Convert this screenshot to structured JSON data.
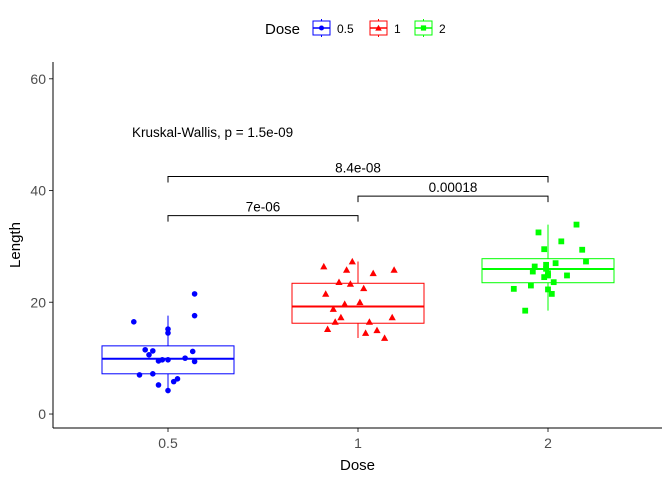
{
  "chart_data": {
    "type": "boxplot",
    "xlabel": "Dose",
    "ylabel": "Length",
    "ylim": [
      -2.5,
      63
    ],
    "yticks": [
      0,
      20,
      40,
      60
    ],
    "categories": [
      "0.5",
      "1",
      "2"
    ],
    "legend": {
      "title": "Dose",
      "position": "top",
      "entries": [
        {
          "label": "0.5",
          "color": "#0000FF",
          "shape": "circle"
        },
        {
          "label": "1",
          "color": "#FF0000",
          "shape": "triangle"
        },
        {
          "label": "2",
          "color": "#00FF00",
          "shape": "square"
        }
      ]
    },
    "series": [
      {
        "name": "0.5",
        "color": "#0000FF",
        "shape": "circle",
        "box": {
          "whisker_low": 4.2,
          "q1": 7.2,
          "median": 9.9,
          "q3": 12.2,
          "whisker_high": 17.6
        },
        "points": [
          {
            "x": -0.18,
            "y": 16.5
          },
          {
            "x": -0.12,
            "y": 11.5
          },
          {
            "x": -0.08,
            "y": 11.3
          },
          {
            "x": -0.15,
            "y": 7.0
          },
          {
            "x": -0.1,
            "y": 10.6
          },
          {
            "x": -0.05,
            "y": 9.5
          },
          {
            "x": -0.08,
            "y": 7.2
          },
          {
            "x": -0.03,
            "y": 9.7
          },
          {
            "x": 0.0,
            "y": 15.2
          },
          {
            "x": 0.0,
            "y": 14.5
          },
          {
            "x": 0.0,
            "y": 9.7
          },
          {
            "x": 0.05,
            "y": 6.3
          },
          {
            "x": 0.03,
            "y": 5.8
          },
          {
            "x": -0.05,
            "y": 5.2
          },
          {
            "x": 0.0,
            "y": 4.2
          },
          {
            "x": 0.09,
            "y": 10.0
          },
          {
            "x": 0.14,
            "y": 9.4
          },
          {
            "x": 0.13,
            "y": 11.2
          },
          {
            "x": 0.14,
            "y": 17.6
          },
          {
            "x": 0.14,
            "y": 21.5
          }
        ]
      },
      {
        "name": "1",
        "color": "#FF0000",
        "shape": "triangle",
        "box": {
          "whisker_low": 13.6,
          "q1": 16.25,
          "median": 19.25,
          "q3": 23.4,
          "whisker_high": 27.3
        },
        "points": [
          {
            "x": -0.18,
            "y": 26.4
          },
          {
            "x": -0.17,
            "y": 21.5
          },
          {
            "x": -0.13,
            "y": 18.8
          },
          {
            "x": -0.16,
            "y": 15.2
          },
          {
            "x": -0.12,
            "y": 16.5
          },
          {
            "x": -0.09,
            "y": 17.3
          },
          {
            "x": -0.1,
            "y": 23.6
          },
          {
            "x": -0.07,
            "y": 19.7
          },
          {
            "x": -0.06,
            "y": 25.8
          },
          {
            "x": -0.04,
            "y": 23.3
          },
          {
            "x": -0.03,
            "y": 27.3
          },
          {
            "x": 0.01,
            "y": 20.0
          },
          {
            "x": 0.03,
            "y": 22.5
          },
          {
            "x": 0.04,
            "y": 14.5
          },
          {
            "x": 0.06,
            "y": 16.5
          },
          {
            "x": 0.08,
            "y": 25.2
          },
          {
            "x": 0.1,
            "y": 15.0
          },
          {
            "x": 0.14,
            "y": 13.6
          },
          {
            "x": 0.18,
            "y": 17.3
          },
          {
            "x": 0.19,
            "y": 25.8
          }
        ]
      },
      {
        "name": "2",
        "color": "#00FF00",
        "shape": "square",
        "box": {
          "whisker_low": 18.5,
          "q1": 23.5,
          "median": 25.95,
          "q3": 27.8,
          "whisker_high": 33.9
        },
        "points": [
          {
            "x": -0.18,
            "y": 22.4
          },
          {
            "x": -0.12,
            "y": 18.5
          },
          {
            "x": -0.09,
            "y": 23.0
          },
          {
            "x": -0.08,
            "y": 25.5
          },
          {
            "x": -0.07,
            "y": 26.4
          },
          {
            "x": -0.05,
            "y": 32.5
          },
          {
            "x": -0.02,
            "y": 29.5
          },
          {
            "x": -0.02,
            "y": 24.5
          },
          {
            "x": -0.01,
            "y": 26.7
          },
          {
            "x": -0.01,
            "y": 26.0
          },
          {
            "x": 0.0,
            "y": 25.2
          },
          {
            "x": 0.0,
            "y": 24.8
          },
          {
            "x": 0.0,
            "y": 22.3
          },
          {
            "x": 0.02,
            "y": 21.5
          },
          {
            "x": 0.03,
            "y": 23.6
          },
          {
            "x": 0.04,
            "y": 27.0
          },
          {
            "x": 0.07,
            "y": 30.9
          },
          {
            "x": 0.1,
            "y": 24.8
          },
          {
            "x": 0.15,
            "y": 33.9
          },
          {
            "x": 0.18,
            "y": 29.4
          },
          {
            "x": 0.2,
            "y": 27.3
          }
        ]
      }
    ],
    "annotations": [
      {
        "text": "Kruskal-Wallis, p = 1.5e-09",
        "x_cat": 0.5,
        "y": 50.5,
        "anchor": "start"
      }
    ],
    "comparisons": [
      {
        "from": 0,
        "to": 1,
        "y": 35.5,
        "label": "7e-06"
      },
      {
        "from": 1,
        "to": 2,
        "y": 39.0,
        "label": "0.00018"
      },
      {
        "from": 0,
        "to": 2,
        "y": 42.5,
        "label": "8.4e-08"
      }
    ]
  }
}
